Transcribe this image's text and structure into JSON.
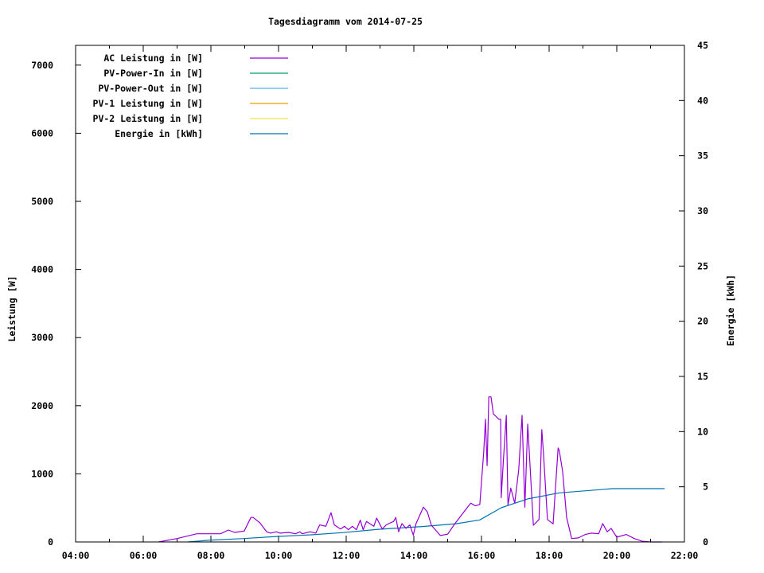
{
  "chart_data": {
    "type": "line",
    "title": "Tagesdiagramm vom 2014-07-25",
    "xlabel": "",
    "ylabel": "Leistung [W]",
    "y2label": "Energie [kWh]",
    "xlim": [
      "04:00",
      "22:00"
    ],
    "ylim": [
      0,
      7290
    ],
    "y2lim": [
      0,
      45
    ],
    "xticks": [
      "04:00",
      "06:00",
      "08:00",
      "10:00",
      "12:00",
      "14:00",
      "16:00",
      "18:00",
      "20:00",
      "22:00"
    ],
    "yticks": [
      "0",
      "1000",
      "2000",
      "3000",
      "4000",
      "5000",
      "6000",
      "7000"
    ],
    "y2ticks": [
      "0",
      "5",
      "10",
      "15",
      "20",
      "25",
      "30",
      "35",
      "40",
      "45"
    ],
    "grid": false,
    "legend_position": "top-left",
    "legend": [
      {
        "name": "AC Leistung in [W]",
        "color": "#9400d3"
      },
      {
        "name": "PV-Power-In in [W]",
        "color": "#009e73"
      },
      {
        "name": "PV-Power-Out in [W]",
        "color": "#56b4e9"
      },
      {
        "name": "PV-1 Leistung in [W]",
        "color": "#e69f00"
      },
      {
        "name": "PV-2 Leistung in [W]",
        "color": "#f0e442"
      },
      {
        "name": "Energie in [kWh]",
        "color": "#0072b2"
      }
    ],
    "series": [
      {
        "name": "AC Leistung in [W]",
        "axis": "y",
        "color": "#9400d3",
        "x": [
          "06:27",
          "07:00",
          "07:35",
          "07:57",
          "08:17",
          "08:31",
          "08:42",
          "08:59",
          "09:11",
          "09:15",
          "09:27",
          "09:39",
          "09:46",
          "09:56",
          "10:03",
          "10:18",
          "10:30",
          "10:38",
          "10:42",
          "10:56",
          "11:06",
          "11:13",
          "11:24",
          "11:33",
          "11:39",
          "11:50",
          "11:57",
          "12:04",
          "12:11",
          "12:18",
          "12:25",
          "12:30",
          "12:36",
          "12:49",
          "12:54",
          "13:04",
          "13:11",
          "13:18",
          "13:24",
          "13:28",
          "13:33",
          "13:39",
          "13:46",
          "13:53",
          "13:59",
          "14:04",
          "14:17",
          "14:24",
          "14:31",
          "14:47",
          "15:00",
          "15:13",
          "15:25",
          "15:41",
          "15:49",
          "15:57",
          "16:04",
          "16:07",
          "16:10",
          "16:13",
          "16:17",
          "16:21",
          "16:31",
          "16:34",
          "16:35",
          "16:39",
          "16:44",
          "16:47",
          "16:52",
          "16:59",
          "17:06",
          "17:12",
          "17:17",
          "17:22",
          "17:32",
          "17:42",
          "17:47",
          "17:50",
          "17:57",
          "18:07",
          "18:16",
          "18:18",
          "18:24",
          "18:31",
          "18:40",
          "18:52",
          "19:04",
          "19:15",
          "19:28",
          "19:35",
          "19:43",
          "19:50",
          "20:00",
          "20:17",
          "20:31",
          "20:45",
          "21:00",
          "21:20"
        ],
        "values": [
          0,
          50,
          120,
          120,
          120,
          175,
          140,
          160,
          360,
          360,
          280,
          150,
          130,
          150,
          130,
          140,
          120,
          150,
          120,
          150,
          130,
          250,
          230,
          430,
          250,
          190,
          230,
          180,
          230,
          180,
          320,
          180,
          300,
          230,
          350,
          190,
          250,
          280,
          300,
          360,
          150,
          270,
          200,
          250,
          100,
          270,
          510,
          440,
          245,
          95,
          115,
          270,
          400,
          570,
          530,
          550,
          1320,
          1800,
          1120,
          2130,
          2130,
          1880,
          1800,
          1800,
          650,
          1210,
          1860,
          540,
          790,
          570,
          1060,
          1860,
          510,
          1730,
          245,
          330,
          1650,
          1300,
          330,
          265,
          1380,
          1340,
          1030,
          360,
          50,
          60,
          110,
          130,
          120,
          270,
          150,
          200,
          70,
          110,
          50,
          10,
          0,
          0
        ]
      },
      {
        "name": "Energie in [kWh]",
        "axis": "y2",
        "color": "#0072b2",
        "x": [
          "07:19",
          "07:55",
          "08:55",
          "09:57",
          "10:58",
          "11:55",
          "12:57",
          "14:15",
          "15:15",
          "15:57",
          "16:35",
          "17:22",
          "18:18",
          "18:56",
          "19:53",
          "21:25"
        ],
        "values": [
          0,
          0.15,
          0.3,
          0.5,
          0.65,
          0.85,
          1.15,
          1.4,
          1.65,
          2.0,
          3.1,
          3.9,
          4.45,
          4.6,
          4.83,
          4.83
        ]
      }
    ]
  }
}
